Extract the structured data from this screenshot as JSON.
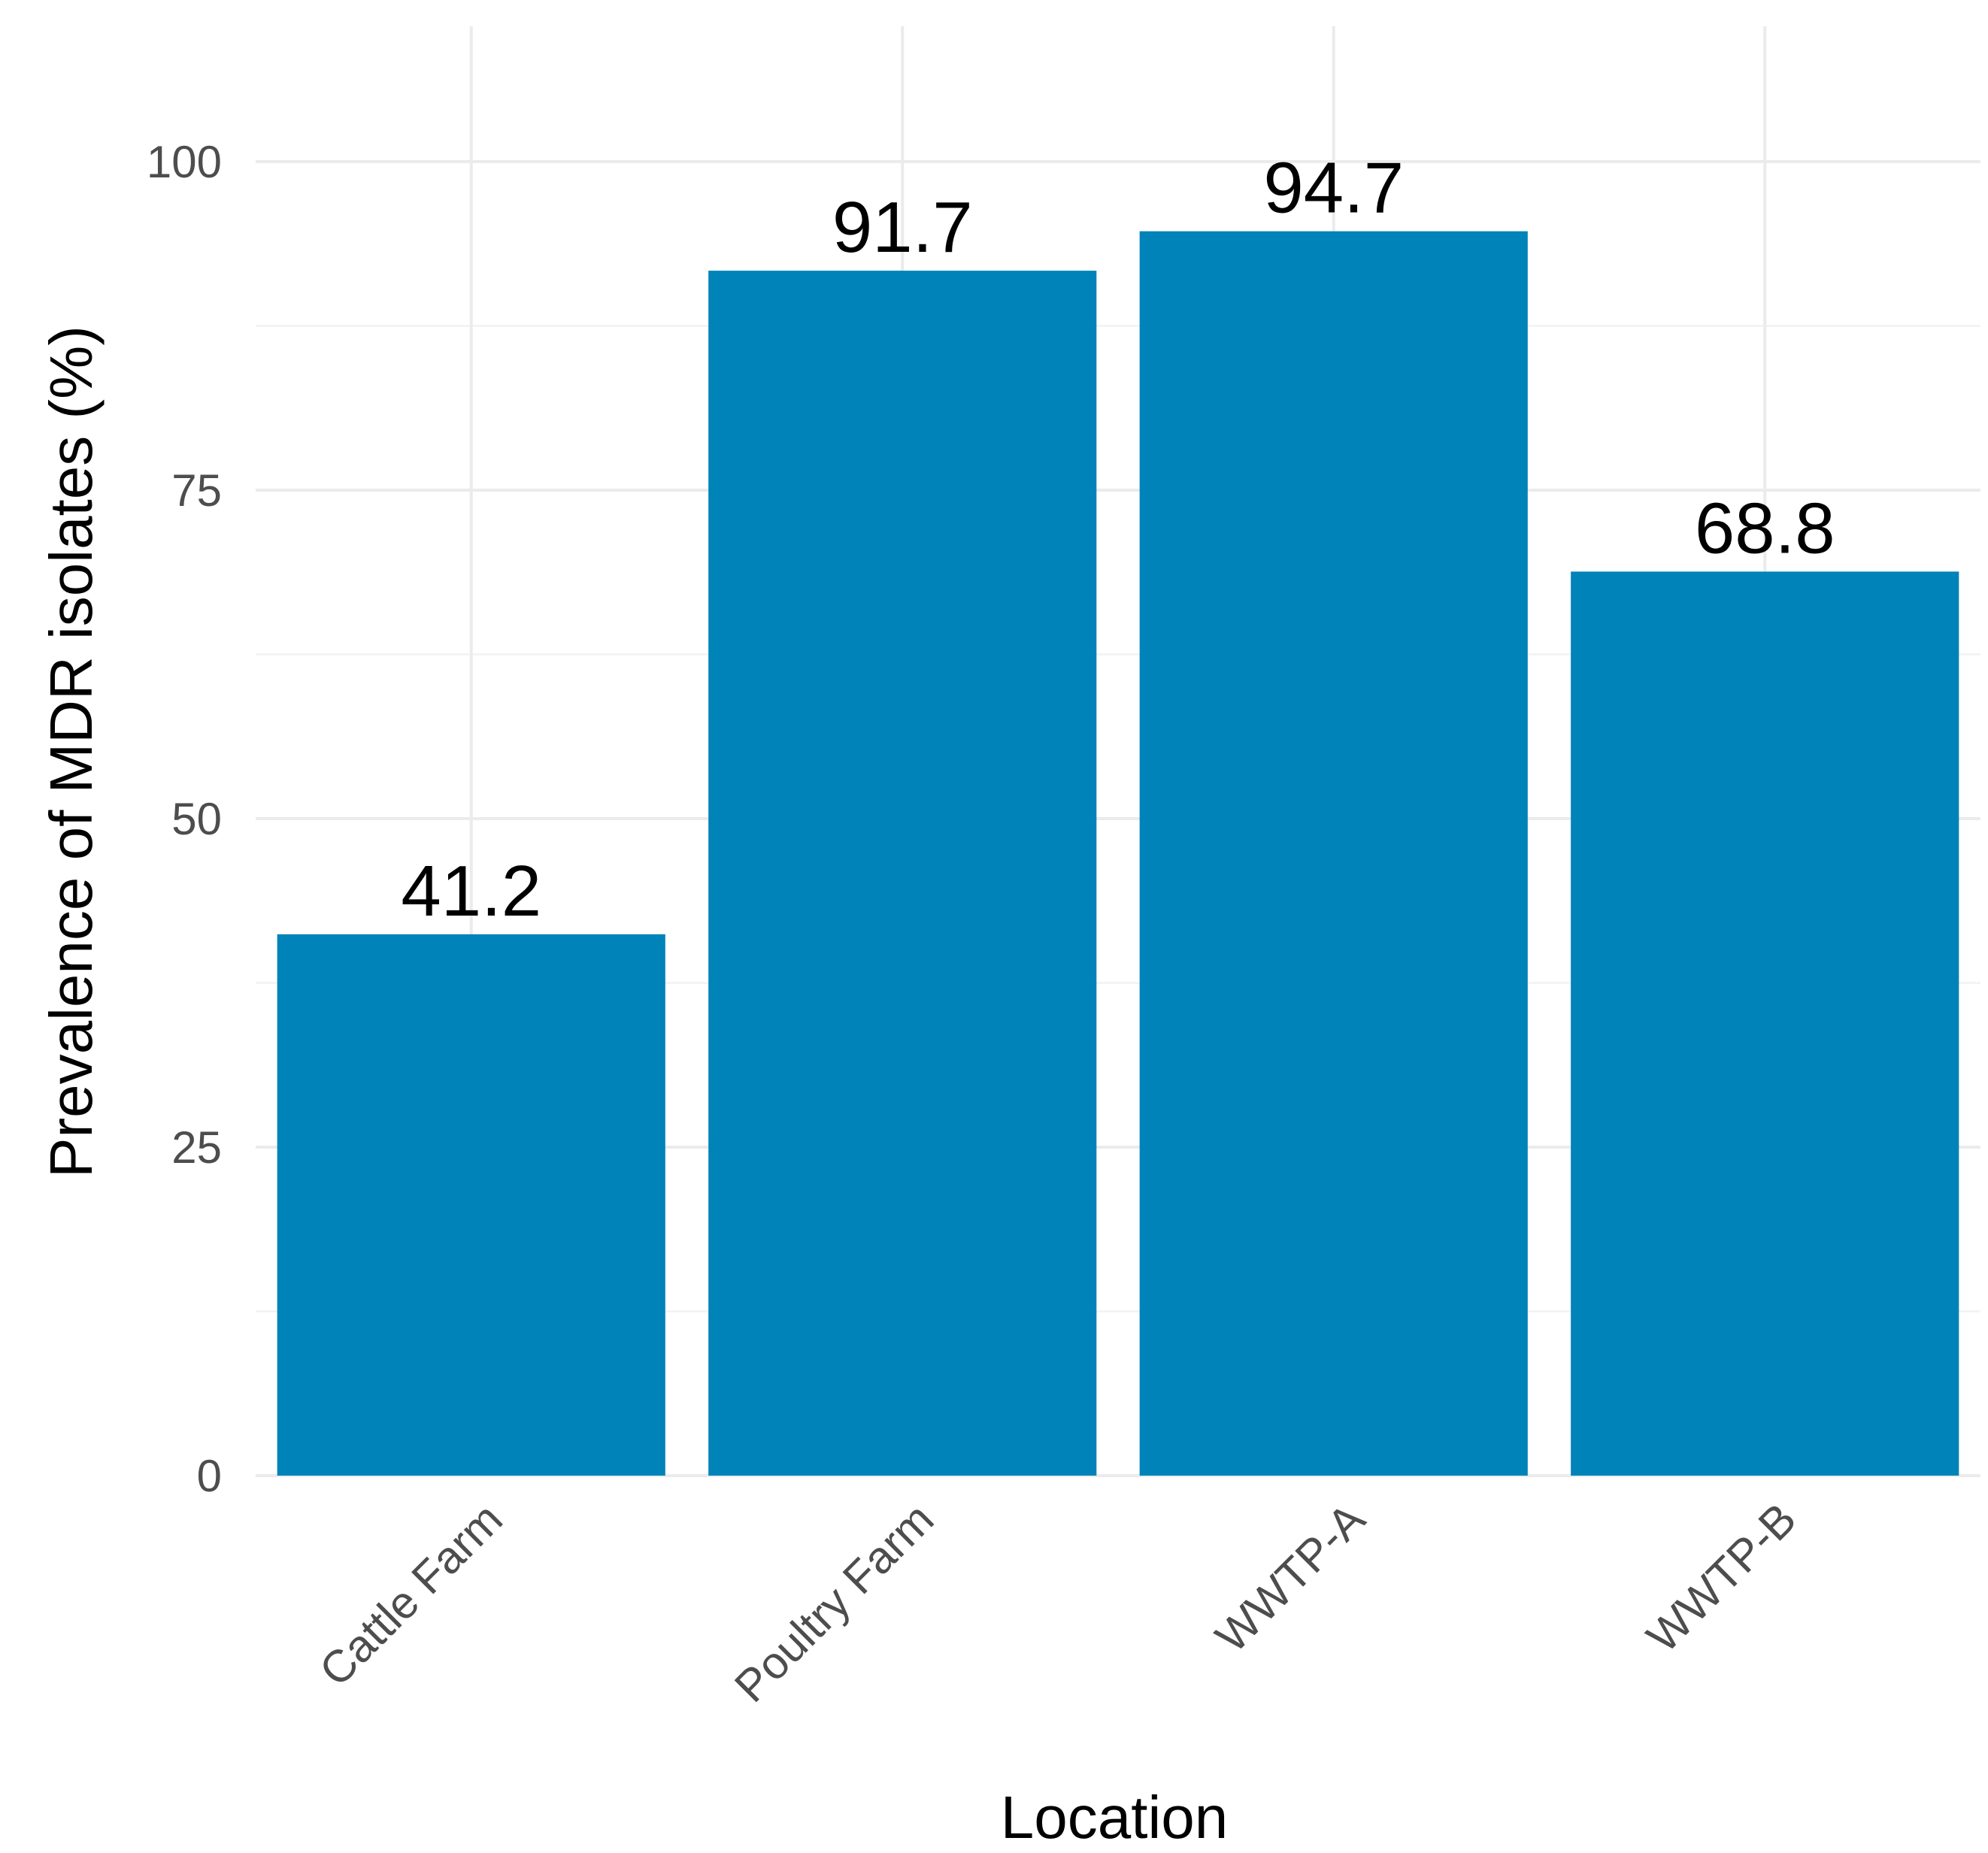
{
  "chart_data": {
    "type": "bar",
    "categories": [
      "Cattle Farm",
      "Poultry Farm",
      "WWTP-A",
      "WWTP-B"
    ],
    "values": [
      41.2,
      91.7,
      94.7,
      68.8
    ],
    "value_labels": [
      "41.2",
      "91.7",
      "94.7",
      "68.8"
    ],
    "title": "",
    "xlabel": "Location",
    "ylabel": "Prevalence of MDR isolates (%)",
    "ylim": [
      0,
      100
    ],
    "yticks": [
      0,
      25,
      50,
      75,
      100
    ],
    "ytick_labels": [
      "0",
      "25",
      "50",
      "75",
      "100"
    ],
    "grid": true,
    "bar_color": "#0083b8"
  }
}
